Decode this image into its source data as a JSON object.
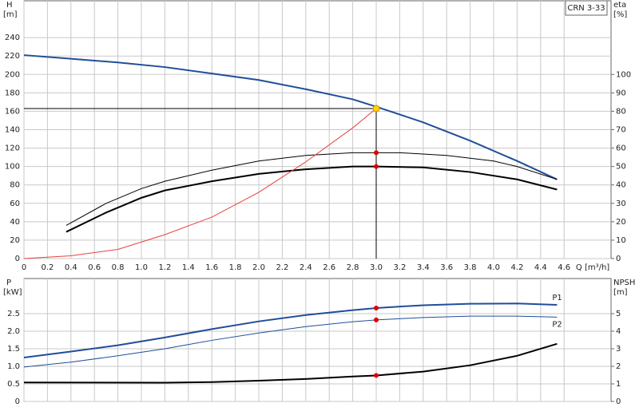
{
  "chart_data": [
    {
      "type": "line",
      "title": "CRN 3-33",
      "y_label": "H",
      "y_unit": "[m]",
      "y2_label": "eta",
      "y2_unit": "[%]",
      "x_label": "Q [m³/h]",
      "xlim": [
        0,
        5.0
      ],
      "ylim": [
        0,
        280
      ],
      "y2lim": [
        0,
        140
      ],
      "xticks": [
        0,
        0.2,
        0.4,
        0.6,
        0.8,
        {
          "value": 1,
          "label": "1.0"
        },
        1.2,
        1.4,
        1.6,
        1.8,
        {
          "value": 2,
          "label": "2.0"
        },
        2.2,
        2.4,
        2.6,
        2.8,
        {
          "value": 3,
          "label": "3.0"
        },
        3.2,
        3.4,
        3.6,
        3.8,
        {
          "value": 4,
          "label": "4.0"
        },
        4.2,
        4.4,
        4.6
      ],
      "yticks": [
        0,
        20,
        40,
        60,
        80,
        100,
        120,
        140,
        160,
        180,
        200,
        220,
        240
      ],
      "y2ticks": [
        0,
        10,
        20,
        30,
        40,
        50,
        60,
        70,
        80,
        90,
        100
      ],
      "grid": true,
      "operating_point": {
        "x": 3.0,
        "y": 163
      },
      "series": [
        {
          "color": "#1f4e9a",
          "width": 2,
          "x": [
            0,
            0.4,
            0.8,
            1.2,
            1.6,
            2.0,
            2.4,
            2.8,
            3.0,
            3.4,
            3.8,
            4.2,
            4.54
          ],
          "values": [
            221,
            217,
            213,
            208,
            201,
            194,
            184,
            173,
            165,
            148,
            128,
            106,
            86
          ]
        },
        {
          "color": "#000000",
          "width": 1,
          "axis": "y2",
          "x": [
            0.36,
            0.7,
            1.0,
            1.2,
            1.6,
            2.0,
            2.4,
            2.8,
            3.2,
            3.6,
            4.0,
            4.2,
            4.54
          ],
          "values": [
            18,
            30,
            38,
            42,
            48,
            53,
            56,
            57.5,
            57.5,
            56,
            53,
            50,
            43
          ],
          "point": {
            "x": 3.0,
            "y": 57.5
          }
        },
        {
          "color": "#000000",
          "width": 2,
          "axis": "y2",
          "x": [
            0.36,
            0.7,
            1.0,
            1.2,
            1.6,
            2.0,
            2.4,
            2.8,
            3.0,
            3.4,
            3.8,
            4.2,
            4.54
          ],
          "values": [
            14.5,
            25,
            33,
            37,
            42,
            46,
            48.5,
            50,
            50,
            49.5,
            47,
            43,
            37.5
          ],
          "point": {
            "x": 3.0,
            "y": 50
          }
        },
        {
          "color": "#e84040",
          "width": 1,
          "x": [
            0,
            0.4,
            0.8,
            1.2,
            1.6,
            2.0,
            2.4,
            2.8,
            3.0
          ],
          "values": [
            0,
            3,
            10,
            26,
            45,
            72,
            105,
            142,
            163
          ]
        }
      ]
    },
    {
      "type": "line",
      "y_label": "P",
      "y_unit": "[kW]",
      "y2_label": "NPSH",
      "y2_unit": "[m]",
      "xlim": [
        0,
        5.0
      ],
      "ylim": [
        0,
        3.5
      ],
      "y2lim": [
        0,
        7
      ],
      "yticks": [
        0,
        0.5,
        {
          "value": 1,
          "label": "1.0"
        },
        1.5,
        {
          "value": 2,
          "label": "2.0"
        },
        2.5
      ],
      "y2ticks": [
        0,
        1,
        2,
        3,
        4,
        5
      ],
      "grid": true,
      "series": [
        {
          "name": "P1",
          "color": "#1f4e9a",
          "width": 2,
          "x": [
            0,
            0.4,
            0.8,
            1.2,
            1.6,
            2.0,
            2.4,
            2.8,
            3.0,
            3.4,
            3.8,
            4.2,
            4.54
          ],
          "values": [
            1.25,
            1.42,
            1.6,
            1.82,
            2.06,
            2.28,
            2.46,
            2.6,
            2.66,
            2.74,
            2.78,
            2.79,
            2.75
          ],
          "point": {
            "x": 3.0,
            "y": 2.66
          }
        },
        {
          "name": "P2",
          "color": "#1f4e9a",
          "width": 1,
          "x": [
            0,
            0.4,
            0.8,
            1.2,
            1.6,
            2.0,
            2.4,
            2.8,
            3.0,
            3.4,
            3.8,
            4.2,
            4.54
          ],
          "values": [
            0.98,
            1.12,
            1.3,
            1.5,
            1.74,
            1.95,
            2.13,
            2.27,
            2.32,
            2.39,
            2.43,
            2.43,
            2.4
          ],
          "point": {
            "x": 3.0,
            "y": 2.32
          }
        },
        {
          "color": "#000000",
          "width": 2,
          "axis": "y2",
          "x": [
            0,
            1.2,
            1.6,
            2.0,
            2.4,
            2.8,
            3.0,
            3.4,
            3.8,
            4.2,
            4.54
          ],
          "values": [
            1.08,
            1.07,
            1.1,
            1.18,
            1.28,
            1.42,
            1.48,
            1.7,
            2.06,
            2.6,
            3.28
          ],
          "point": {
            "x": 3.0,
            "y": 1.48
          }
        }
      ]
    }
  ]
}
